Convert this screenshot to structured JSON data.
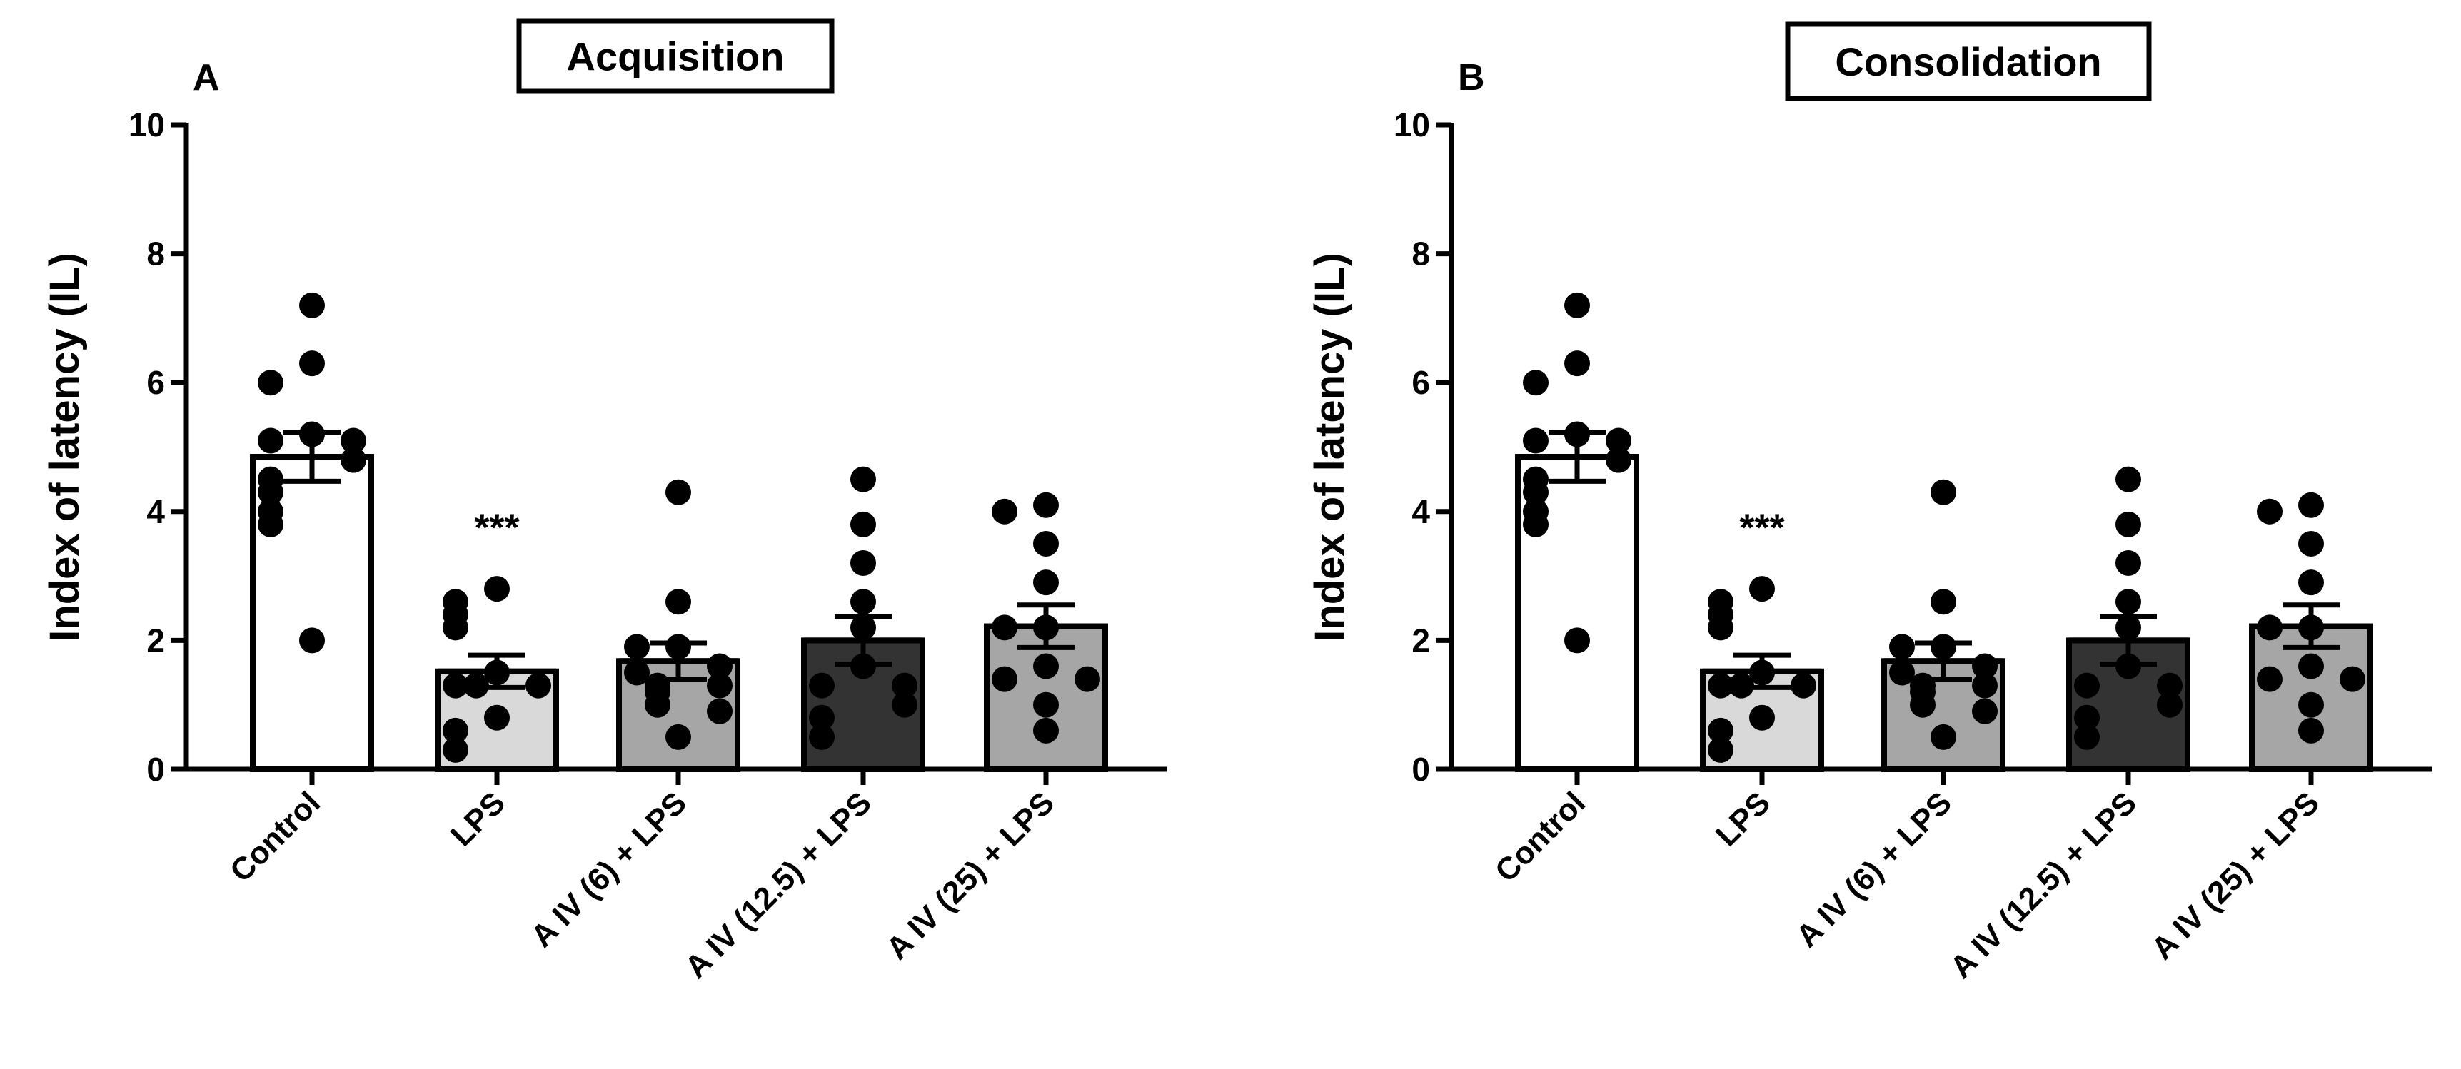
{
  "chart_data": [
    {
      "type": "bar",
      "panel_label": "A",
      "title": "Acquisition",
      "ylabel": "Index of latency (IL)",
      "xlabel": "",
      "ylim": [
        0,
        10
      ],
      "yticks": [
        "0",
        "2",
        "4",
        "6",
        "8",
        "10"
      ],
      "grid": false,
      "categories": [
        "Control",
        "LPS",
        "A IV (6) + LPS",
        "A IV (12.5) + LPS",
        "A IV (25) + LPS"
      ],
      "values": [
        4.85,
        1.52,
        1.68,
        2.0,
        2.22
      ],
      "sem": [
        0.38,
        0.25,
        0.28,
        0.37,
        0.33
      ],
      "colors": [
        "#ffffff",
        "#d9d9d9",
        "#a6a6a6",
        "#333333",
        "#a6a6a6"
      ],
      "points": [
        [
          7.2,
          6.3,
          6.0,
          5.2,
          5.1,
          5.1,
          4.8,
          4.5,
          4.3,
          4.0,
          3.8,
          2.0
        ],
        [
          2.8,
          2.6,
          2.4,
          2.2,
          1.5,
          1.3,
          1.3,
          1.3,
          0.8,
          0.6,
          0.3
        ],
        [
          4.3,
          2.6,
          1.9,
          1.9,
          1.6,
          1.5,
          1.3,
          1.3,
          1.2,
          1.0,
          0.9,
          0.5
        ],
        [
          4.5,
          3.8,
          3.2,
          2.6,
          2.2,
          1.6,
          1.3,
          1.3,
          1.0,
          0.8,
          0.5
        ],
        [
          4.1,
          4.0,
          3.5,
          2.9,
          2.2,
          2.2,
          1.6,
          1.4,
          1.4,
          1.0,
          0.6
        ]
      ],
      "annotations": [
        {
          "category": "LPS",
          "text": "***"
        }
      ]
    },
    {
      "type": "bar",
      "panel_label": "B",
      "title": "Consolidation",
      "ylabel": "Index of latency (IL)",
      "xlabel": "",
      "ylim": [
        0,
        10
      ],
      "yticks": [
        "0",
        "2",
        "4",
        "6",
        "8",
        "10"
      ],
      "grid": false,
      "categories": [
        "Control",
        "LPS",
        "A IV (6) + LPS",
        "A IV (12.5) + LPS",
        "A IV (25) + LPS"
      ],
      "values": [
        4.85,
        1.52,
        1.68,
        2.0,
        2.22
      ],
      "sem": [
        0.38,
        0.25,
        0.28,
        0.37,
        0.33
      ],
      "colors": [
        "#ffffff",
        "#d9d9d9",
        "#a6a6a6",
        "#333333",
        "#a6a6a6"
      ],
      "points": [
        [
          7.2,
          6.3,
          6.0,
          5.2,
          5.1,
          5.1,
          4.8,
          4.5,
          4.3,
          4.0,
          3.8,
          2.0
        ],
        [
          2.8,
          2.6,
          2.4,
          2.2,
          1.5,
          1.3,
          1.3,
          1.3,
          0.8,
          0.6,
          0.3
        ],
        [
          4.3,
          2.6,
          1.9,
          1.9,
          1.6,
          1.5,
          1.3,
          1.3,
          1.2,
          1.0,
          0.9,
          0.5
        ],
        [
          4.5,
          3.8,
          3.2,
          2.6,
          2.2,
          1.6,
          1.3,
          1.3,
          1.0,
          0.8,
          0.5
        ],
        [
          4.1,
          4.0,
          3.5,
          2.9,
          2.2,
          2.2,
          1.6,
          1.4,
          1.4,
          1.0,
          0.6
        ]
      ],
      "annotations": [
        {
          "category": "LPS",
          "text": "***"
        }
      ]
    }
  ]
}
